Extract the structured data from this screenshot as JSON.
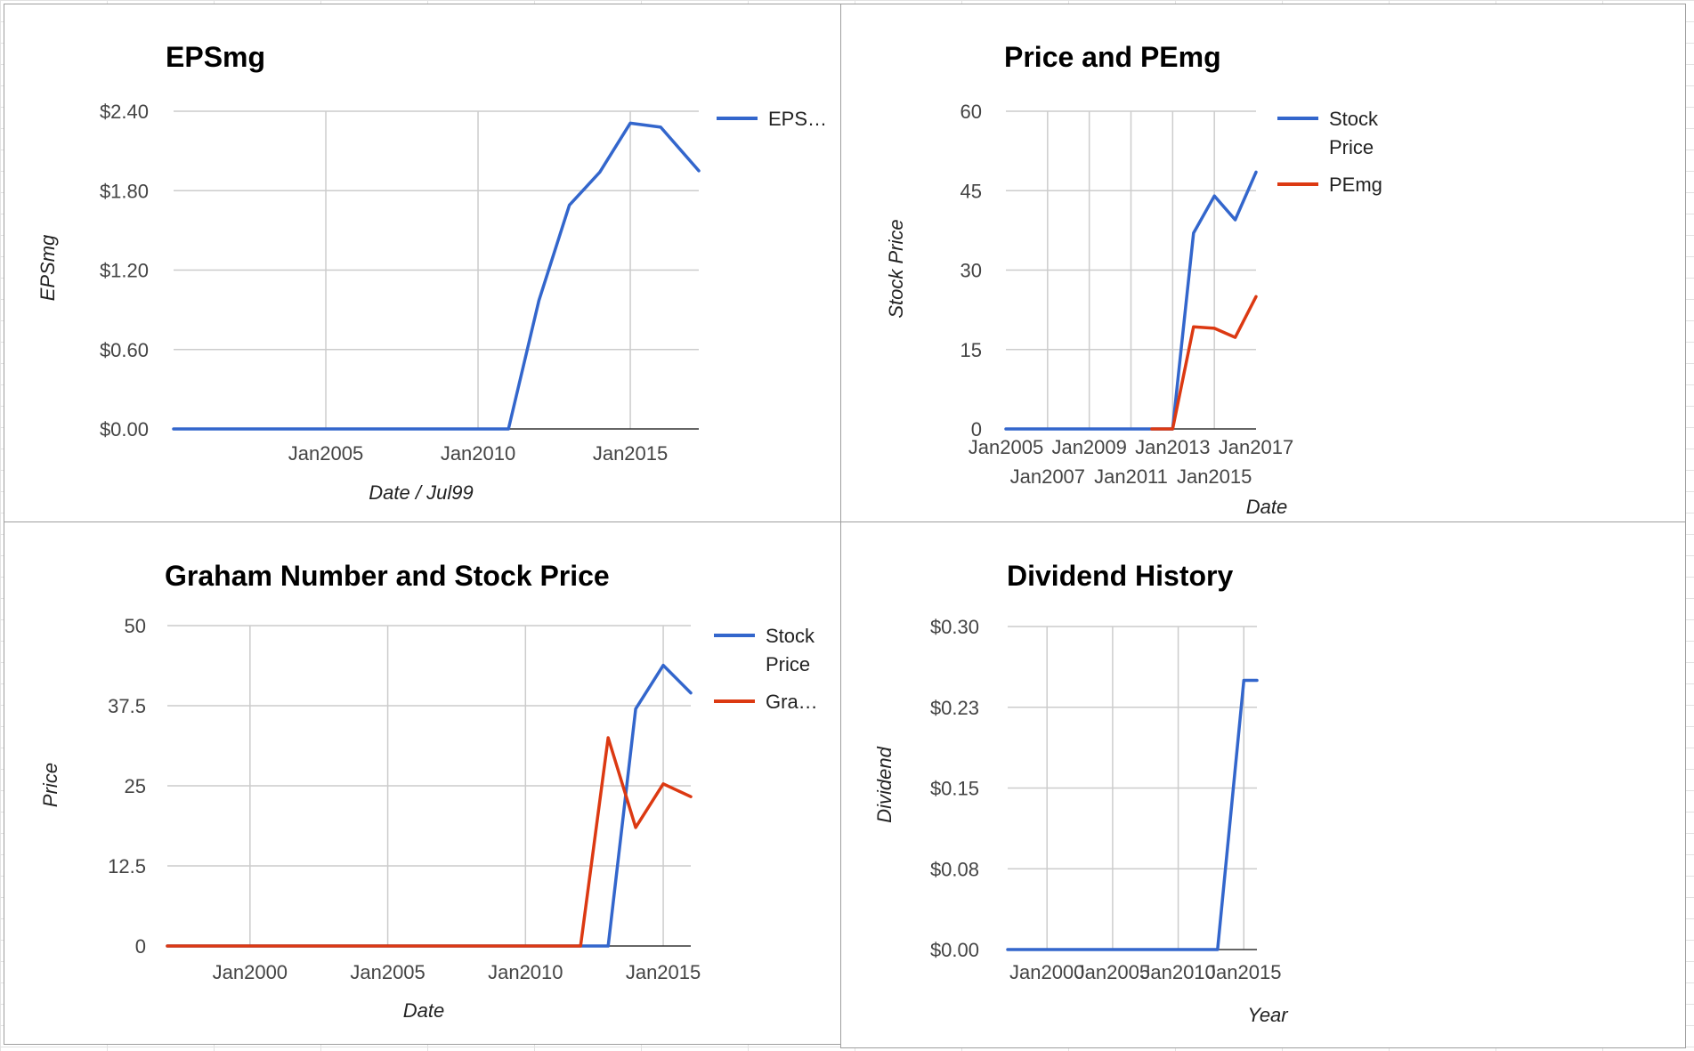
{
  "chart_data": [
    {
      "type": "line",
      "title": "EPSmg",
      "xlabel": "Date / Jul99",
      "ylabel": "EPSmg",
      "x_type": "date",
      "xlim": [
        "2000-01",
        "2017-04"
      ],
      "ylim": [
        0,
        2.4
      ],
      "x_ticks": [
        "Jan2005",
        "Jan2010",
        "Jan2015"
      ],
      "y_ticks": [
        "$0.00",
        "$0.60",
        "$1.20",
        "$1.80",
        "$2.40"
      ],
      "grid": true,
      "legend_position": "right",
      "series": [
        {
          "name": "EPS…",
          "color": "#3366cc",
          "points": [
            [
              "2000-01",
              0
            ],
            [
              "2011-01",
              0
            ],
            [
              "2012-01",
              0.97
            ],
            [
              "2013-01",
              1.69
            ],
            [
              "2014-01",
              1.94
            ],
            [
              "2015-01",
              2.31
            ],
            [
              "2016-01",
              2.28
            ],
            [
              "2017-04",
              1.95
            ]
          ]
        }
      ]
    },
    {
      "type": "line",
      "title": "Price and PEmg",
      "xlabel": "Date",
      "ylabel": "Stock Price",
      "x_type": "date",
      "xlim": [
        "2005-01",
        "2017-01"
      ],
      "ylim": [
        0,
        60
      ],
      "x_ticks": [
        "Jan2005",
        "Jan2007",
        "Jan2009",
        "Jan2011",
        "Jan2013",
        "Jan2015",
        "Jan2017"
      ],
      "y_ticks": [
        "0",
        "15",
        "30",
        "45",
        "60"
      ],
      "grid": true,
      "legend_position": "right",
      "series": [
        {
          "name": "Stock Price",
          "color": "#3366cc",
          "points": [
            [
              "2005-01",
              0
            ],
            [
              "2013-01",
              0
            ],
            [
              "2014-01",
              37
            ],
            [
              "2015-01",
              44
            ],
            [
              "2016-01",
              39.5
            ],
            [
              "2017-01",
              48.5
            ]
          ]
        },
        {
          "name": "PEmg",
          "color": "#dc3912",
          "points": [
            [
              "2012-01",
              0
            ],
            [
              "2013-01",
              0
            ],
            [
              "2014-01",
              19.3
            ],
            [
              "2015-01",
              19
            ],
            [
              "2016-01",
              17.3
            ],
            [
              "2017-01",
              25
            ]
          ]
        }
      ]
    },
    {
      "type": "line",
      "title": "Graham Number and Stock Price",
      "xlabel": "Date",
      "ylabel": "Price",
      "x_type": "date",
      "xlim": [
        "1997-01",
        "2016-01"
      ],
      "ylim": [
        0,
        50
      ],
      "x_ticks": [
        "Jan2000",
        "Jan2005",
        "Jan2010",
        "Jan2015"
      ],
      "y_ticks": [
        "0",
        "12.5",
        "25",
        "37.5",
        "50"
      ],
      "grid": true,
      "legend_position": "right",
      "series": [
        {
          "name": "Stock Price",
          "color": "#3366cc",
          "points": [
            [
              "1997-01",
              0
            ],
            [
              "2013-01",
              0
            ],
            [
              "2014-01",
              37
            ],
            [
              "2015-01",
              43.8
            ],
            [
              "2016-01",
              39.5
            ]
          ]
        },
        {
          "name": "Gra…",
          "color": "#dc3912",
          "points": [
            [
              "1997-01",
              0
            ],
            [
              "2012-01",
              0
            ],
            [
              "2013-01",
              32.5
            ],
            [
              "2014-01",
              18.5
            ],
            [
              "2015-01",
              25.3
            ],
            [
              "2016-01",
              23.3
            ]
          ]
        }
      ]
    },
    {
      "type": "line",
      "title": "Dividend History",
      "xlabel": "Year",
      "ylabel": "Dividend",
      "x_type": "date",
      "xlim": [
        "1997-01",
        "2016-01"
      ],
      "ylim": [
        0,
        0.3
      ],
      "x_ticks": [
        "Jan2000",
        "Jan2005",
        "Jan2010",
        "Jan2015"
      ],
      "y_ticks": [
        "$0.00",
        "$0.08",
        "$0.15",
        "$0.23",
        "$0.30"
      ],
      "grid": true,
      "legend_position": "none",
      "series": [
        {
          "color": "#3366cc",
          "points": [
            [
              "1997-01",
              0
            ],
            [
              "2013-01",
              0
            ],
            [
              "2015-01",
              0.25
            ],
            [
              "2016-01",
              0.25
            ]
          ]
        }
      ]
    }
  ]
}
